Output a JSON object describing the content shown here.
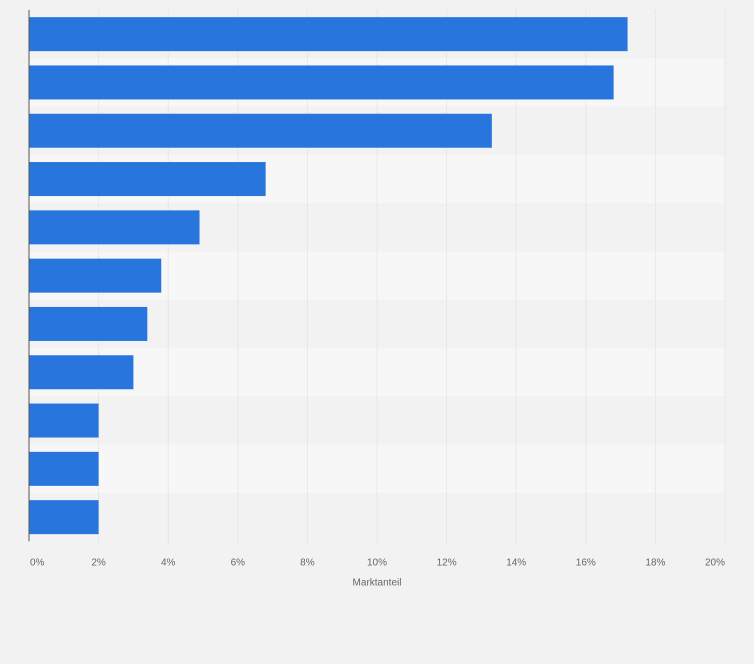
{
  "chart_data": {
    "type": "bar",
    "orientation": "horizontal",
    "categories": [
      "",
      "",
      "",
      "",
      "",
      "",
      "",
      "",
      "",
      "",
      ""
    ],
    "values": [
      17.2,
      16.8,
      13.3,
      6.8,
      4.9,
      3.8,
      3.4,
      3.0,
      2.0,
      2.0,
      2.0
    ],
    "title": "",
    "xlabel": "Marktanteil",
    "ylabel": "",
    "xlim": [
      0,
      20
    ],
    "x_ticks": [
      0,
      2,
      4,
      6,
      8,
      10,
      12,
      14,
      16,
      18,
      20
    ],
    "x_tick_labels": [
      "0%",
      "2%",
      "4%",
      "6%",
      "8%",
      "10%",
      "12%",
      "14%",
      "16%",
      "18%",
      "20%"
    ],
    "grid": true,
    "legend": "none"
  },
  "colors": {
    "bar": "#2876dd",
    "background": "#f2f2f2",
    "band_light": "#f7f7f7",
    "band_dark": "#f2f2f2",
    "grid": "#dcdcdc",
    "axis_text": "#666666"
  }
}
